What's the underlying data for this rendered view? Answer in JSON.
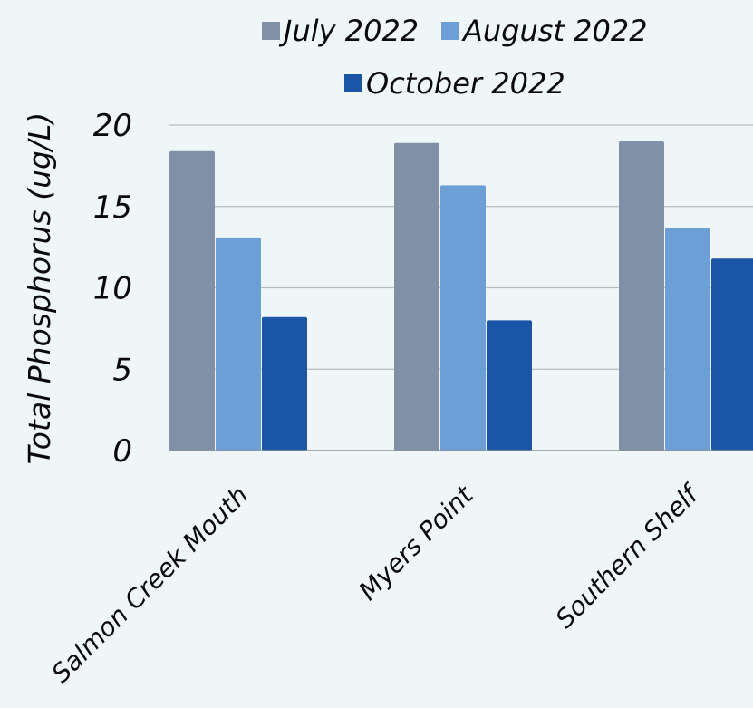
{
  "chart_data": {
    "type": "bar",
    "ylabel": "Total Phosphorus (ug/L)",
    "xlabel": "",
    "ylim": [
      0,
      20
    ],
    "yticks": [
      "0",
      "5",
      "10",
      "15",
      "20"
    ],
    "categories": [
      "Salmon Creek Mouth",
      "Myers Point",
      "Southern Shelf"
    ],
    "series": [
      {
        "name": "July 2022",
        "color": "#8090a6",
        "values": [
          18.4,
          18.9,
          19.0
        ]
      },
      {
        "name": "August 2022",
        "color": "#6c9fd6",
        "values": [
          13.1,
          16.3,
          13.7
        ]
      },
      {
        "name": "October 2022",
        "color": "#1a55a8",
        "values": [
          8.2,
          8.0,
          11.8
        ]
      }
    ],
    "grid": true,
    "legend_position": "top"
  }
}
